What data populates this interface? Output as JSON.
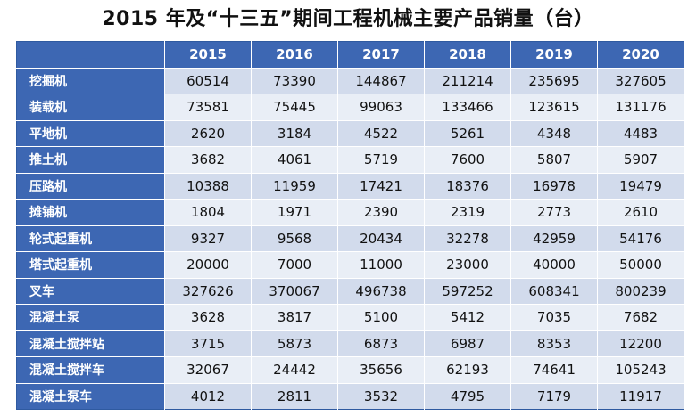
{
  "title": "2015 年及“十三五”期间工程机械主要产品销量（台）",
  "table": {
    "years": [
      "2015",
      "2016",
      "2017",
      "2018",
      "2019",
      "2020"
    ],
    "rows": [
      {
        "name": "挖掘机",
        "values": [
          "60514",
          "73390",
          "144867",
          "211214",
          "235695",
          "327605"
        ]
      },
      {
        "name": "装载机",
        "values": [
          "73581",
          "75445",
          "99063",
          "133466",
          "123615",
          "131176"
        ]
      },
      {
        "name": "平地机",
        "values": [
          "2620",
          "3184",
          "4522",
          "5261",
          "4348",
          "4483"
        ]
      },
      {
        "name": "推土机",
        "values": [
          "3682",
          "4061",
          "5719",
          "7600",
          "5807",
          "5907"
        ]
      },
      {
        "name": "压路机",
        "values": [
          "10388",
          "11959",
          "17421",
          "18376",
          "16978",
          "19479"
        ]
      },
      {
        "name": "摊铺机",
        "values": [
          "1804",
          "1971",
          "2390",
          "2319",
          "2773",
          "2610"
        ]
      },
      {
        "name": "轮式起重机",
        "values": [
          "9327",
          "9568",
          "20434",
          "32278",
          "42959",
          "54176"
        ]
      },
      {
        "name": "塔式起重机",
        "values": [
          "20000",
          "7000",
          "11000",
          "23000",
          "40000",
          "50000"
        ]
      },
      {
        "name": "叉车",
        "values": [
          "327626",
          "370067",
          "496738",
          "597252",
          "608341",
          "800239"
        ]
      },
      {
        "name": "混凝土泵",
        "values": [
          "3628",
          "3817",
          "5100",
          "5412",
          "7035",
          "7682"
        ]
      },
      {
        "name": "混凝土搅拌站",
        "values": [
          "3715",
          "5873",
          "6873",
          "6987",
          "8353",
          "12200"
        ]
      },
      {
        "name": "混凝土搅拌车",
        "values": [
          "32067",
          "24442",
          "35656",
          "62193",
          "74641",
          "105243"
        ]
      },
      {
        "name": "混凝土泵车",
        "values": [
          "4012",
          "2811",
          "3532",
          "4795",
          "7179",
          "11917"
        ]
      }
    ]
  }
}
